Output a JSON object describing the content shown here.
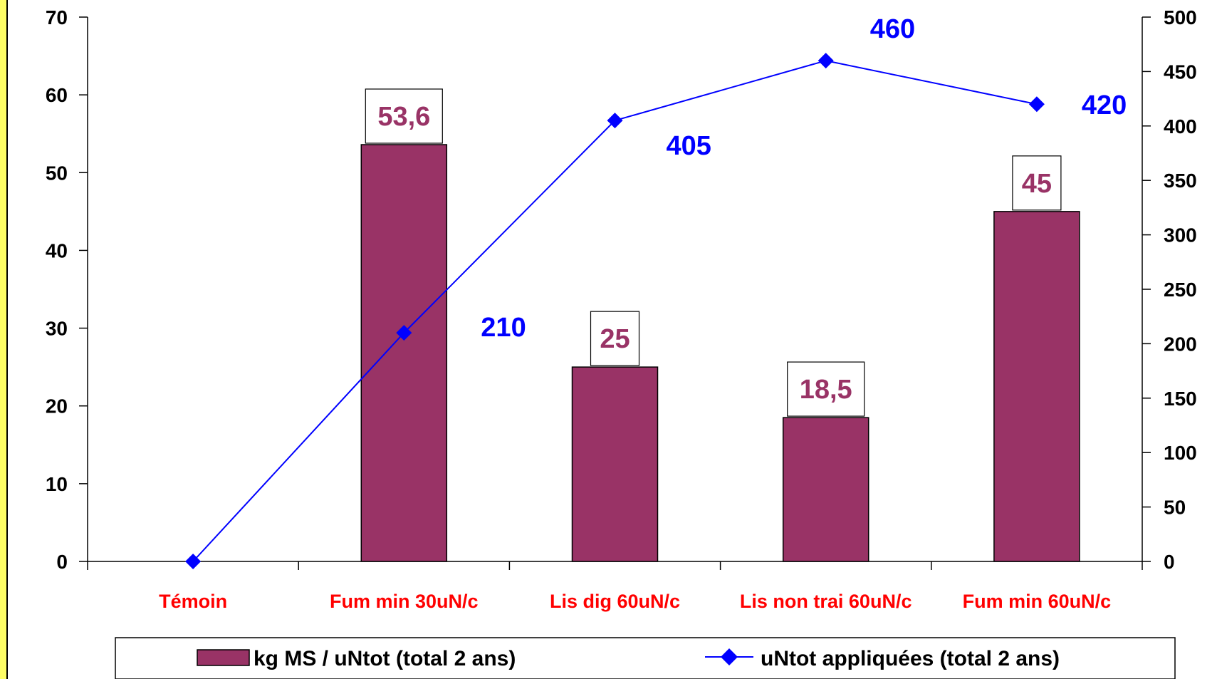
{
  "colors": {
    "bar_fill": "#993366",
    "bar_label": "#993366",
    "line": "#0000ff",
    "category_label": "#ff0000",
    "left_stripe": "#ffff66"
  },
  "chart_data": {
    "type": "bar",
    "categories": [
      "Témoin",
      "Fum min 30uN/c",
      "Lis dig 60uN/c",
      "Lis non trai 60uN/c",
      "Fum min 60uN/c"
    ],
    "series": [
      {
        "name": "kg MS / uNtot (total 2 ans)",
        "type": "bar",
        "axis": "left",
        "values": [
          null,
          53.6,
          25,
          18.5,
          45
        ],
        "labels": [
          "",
          "53,6",
          "25",
          "18,5",
          "45"
        ]
      },
      {
        "name": "uNtot appliquées (total 2 ans)",
        "type": "line",
        "axis": "right",
        "marker": "diamond",
        "values": [
          0,
          210,
          405,
          460,
          420
        ],
        "labels": [
          "",
          "210",
          "405",
          "460",
          "420"
        ]
      }
    ],
    "y_left": {
      "min": 0,
      "max": 70,
      "ticks": [
        "0",
        "10",
        "20",
        "30",
        "40",
        "50",
        "60",
        "70"
      ]
    },
    "y_right": {
      "min": 0,
      "max": 500,
      "ticks": [
        "0",
        "50",
        "100",
        "150",
        "200",
        "250",
        "300",
        "350",
        "400",
        "450",
        "500"
      ]
    },
    "grid": false,
    "legend_position": "bottom"
  }
}
